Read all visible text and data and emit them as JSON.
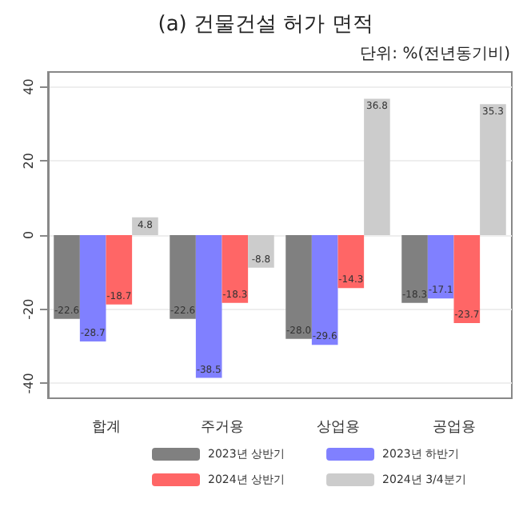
{
  "chart_data": {
    "type": "bar",
    "title": "(a) 건물건설 허가 면적",
    "subtitle": "단위: %(전년동기비)",
    "categories": [
      "합계",
      "주거용",
      "상업용",
      "공업용"
    ],
    "series": [
      {
        "name": "2023년 상반기",
        "color": "#808080",
        "values": [
          -22.6,
          -22.6,
          -28.0,
          -18.3
        ],
        "value_labels": [
          "-22.6",
          "-22.6",
          "-28.0",
          "-18.3"
        ]
      },
      {
        "name": "2023년 하반기",
        "color": "#8080ff",
        "values": [
          -28.7,
          -38.5,
          -29.6,
          -17.1
        ],
        "value_labels": [
          "-28.7",
          "-38.5",
          "-29.6",
          "-17.1"
        ]
      },
      {
        "name": "2024년 상반기",
        "color": "#ff6666",
        "values": [
          -18.7,
          -18.3,
          -14.3,
          -23.7
        ],
        "value_labels": [
          "-18.7",
          "-18.3",
          "-14.3",
          "-23.7"
        ]
      },
      {
        "name": "2024년 3/4분기",
        "color": "#cccccc",
        "values": [
          4.8,
          -8.8,
          36.8,
          35.3
        ],
        "value_labels": [
          "4.8",
          "-8.8",
          "36.8",
          "35.3"
        ]
      }
    ],
    "ylim": [
      -44,
      44
    ],
    "yticks": [
      -40,
      -20,
      0,
      20,
      40
    ],
    "grid": "y",
    "legend": "bottom"
  }
}
